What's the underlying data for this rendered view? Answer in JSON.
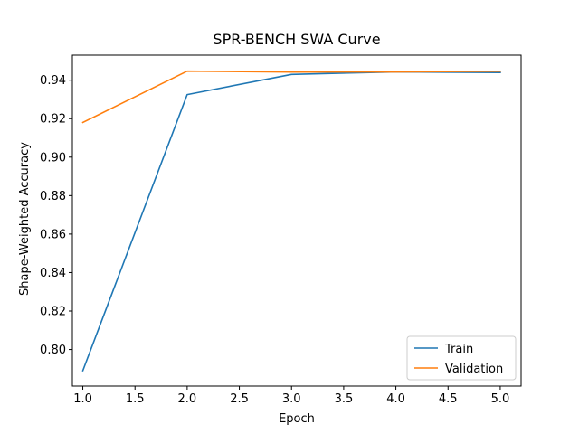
{
  "chart_data": {
    "type": "line",
    "title": "SPR-BENCH SWA Curve",
    "xlabel": "Epoch",
    "ylabel": "Shape-Weighted Accuracy",
    "x": [
      1,
      2,
      3,
      4,
      5
    ],
    "xlim": [
      0.9,
      5.2
    ],
    "ylim": [
      0.781,
      0.953
    ],
    "xticks": [
      1.0,
      1.5,
      2.0,
      2.5,
      3.0,
      3.5,
      4.0,
      4.5,
      5.0
    ],
    "xtick_labels": [
      "1.0",
      "1.5",
      "2.0",
      "2.5",
      "3.0",
      "3.5",
      "4.0",
      "4.5",
      "5.0"
    ],
    "yticks": [
      0.8,
      0.82,
      0.84,
      0.86,
      0.88,
      0.9,
      0.92,
      0.94
    ],
    "ytick_labels": [
      "0.80",
      "0.82",
      "0.84",
      "0.86",
      "0.88",
      "0.90",
      "0.92",
      "0.94"
    ],
    "grid": false,
    "legend_position": "lower-right",
    "series": [
      {
        "name": "Train",
        "color": "#1f77b4",
        "values": [
          0.789,
          0.9325,
          0.943,
          0.9443,
          0.944
        ]
      },
      {
        "name": "Validation",
        "color": "#ff7f0e",
        "values": [
          0.918,
          0.9447,
          0.9442,
          0.9443,
          0.9446
        ]
      }
    ]
  }
}
